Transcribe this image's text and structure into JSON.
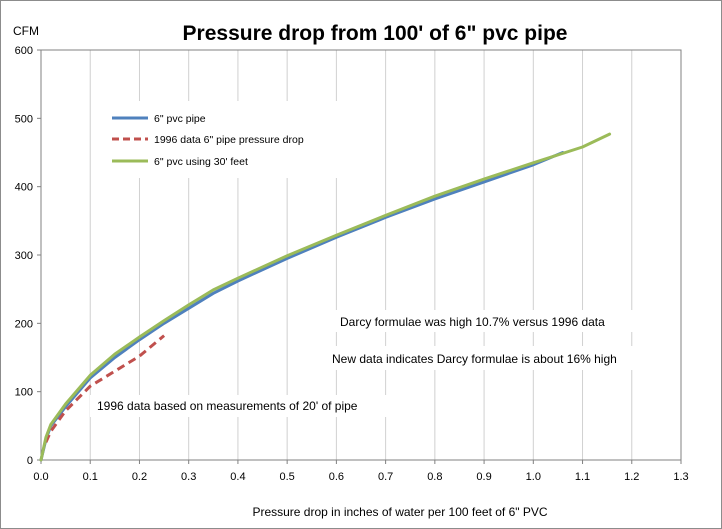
{
  "chart_data": {
    "type": "line",
    "title": "Pressure drop from 100' of 6\" pvc pipe",
    "xlabel": "Pressure drop in inches of water per 100  feet of 6\" PVC",
    "ylabel": "CFM",
    "xlim": [
      0,
      1.3
    ],
    "ylim": [
      0,
      600
    ],
    "x_ticks": [
      "0.0",
      "0.1",
      "0.2",
      "0.3",
      "0.4",
      "0.5",
      "0.6",
      "0.7",
      "0.8",
      "0.9",
      "1.0",
      "1.1",
      "1.2",
      "1.3"
    ],
    "y_ticks": [
      "0",
      "100",
      "200",
      "300",
      "400",
      "500",
      "600"
    ],
    "grid": "vertical",
    "legend_position": "upper-left",
    "series": [
      {
        "name": "6\" pvc pipe",
        "color": "#4f81bd",
        "style": "solid",
        "points": [
          [
            0,
            0
          ],
          [
            0.01,
            30
          ],
          [
            0.02,
            50
          ],
          [
            0.05,
            78
          ],
          [
            0.1,
            120
          ],
          [
            0.15,
            150
          ],
          [
            0.2,
            176
          ],
          [
            0.25,
            200
          ],
          [
            0.3,
            222
          ],
          [
            0.35,
            244
          ],
          [
            0.4,
            262
          ],
          [
            0.5,
            295
          ],
          [
            0.6,
            326
          ],
          [
            0.7,
            355
          ],
          [
            0.8,
            382
          ],
          [
            0.9,
            407
          ],
          [
            1.0,
            432
          ],
          [
            1.06,
            450
          ]
        ]
      },
      {
        "name": "1996 data 6\" pipe pressure drop",
        "color": "#c0504d",
        "style": "dashed",
        "points": [
          [
            0.01,
            26
          ],
          [
            0.02,
            42
          ],
          [
            0.05,
            72
          ],
          [
            0.1,
            108
          ],
          [
            0.15,
            130
          ],
          [
            0.2,
            152
          ],
          [
            0.25,
            182
          ]
        ]
      },
      {
        "name": "6\" pvc using 30' feet",
        "color": "#9bbb59",
        "style": "solid",
        "points": [
          [
            0,
            0
          ],
          [
            0.01,
            33
          ],
          [
            0.02,
            52
          ],
          [
            0.05,
            82
          ],
          [
            0.1,
            124
          ],
          [
            0.15,
            155
          ],
          [
            0.2,
            180
          ],
          [
            0.25,
            204
          ],
          [
            0.3,
            227
          ],
          [
            0.35,
            249
          ],
          [
            0.4,
            266
          ],
          [
            0.5,
            299
          ],
          [
            0.6,
            329
          ],
          [
            0.7,
            358
          ],
          [
            0.8,
            386
          ],
          [
            0.9,
            411
          ],
          [
            1.0,
            435
          ],
          [
            1.1,
            458
          ],
          [
            1.155,
            477
          ]
        ]
      }
    ],
    "annotations": [
      "Darcy formulae was high 10.7% versus 1996 data",
      "New data indicates Darcy formulae is about 16% high",
      "1996 data based on measurements of 20' of pipe"
    ]
  }
}
